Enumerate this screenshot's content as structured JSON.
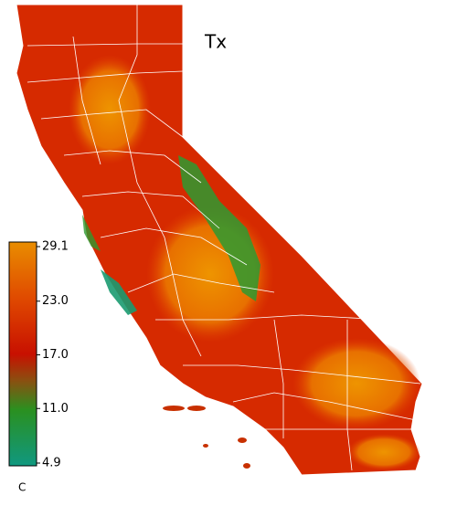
{
  "title": "Tx",
  "colorbar": {
    "range": [
      4.9,
      29.1
    ],
    "ticks": [
      29.1,
      {
        "value": 23,
        "label": "23.0"
      },
      {
        "value": 17,
        "label": "17.0"
      },
      {
        "value": 11,
        "label": "11.0"
      },
      4.9
    ],
    "unit": "C"
  }
}
